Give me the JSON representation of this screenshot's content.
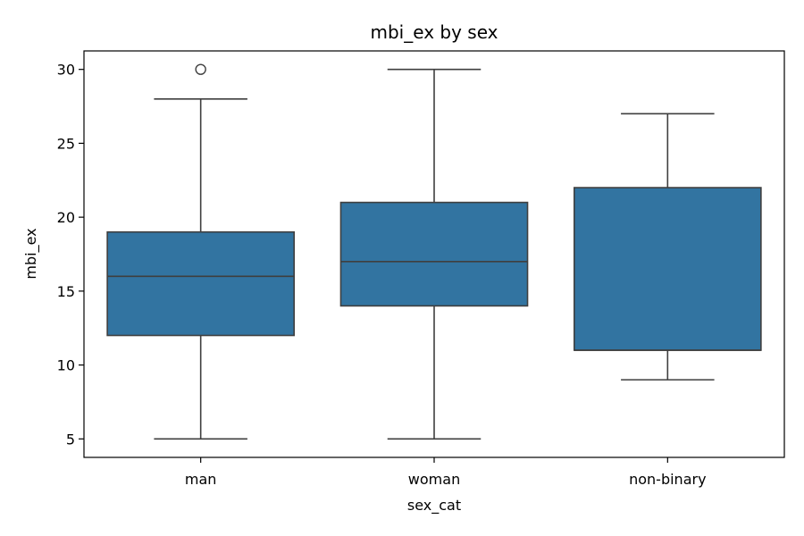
{
  "chart_data": {
    "type": "box",
    "title": "mbi_ex by sex",
    "xlabel": "sex_cat",
    "ylabel": "mbi_ex",
    "categories": [
      "man",
      "woman",
      "non-binary"
    ],
    "ylim": [
      3.75,
      31.25
    ],
    "yticks": [
      5,
      10,
      15,
      20,
      25,
      30
    ],
    "grid": false,
    "colors": {
      "box_fill": "#3274a1",
      "line": "#3f3f3f"
    },
    "boxes": [
      {
        "category": "man",
        "whisker_low": 5,
        "q1": 12,
        "median": 16,
        "q3": 19,
        "whisker_high": 28,
        "outliers": [
          30
        ]
      },
      {
        "category": "woman",
        "whisker_low": 5,
        "q1": 14,
        "median": 17,
        "q3": 21,
        "whisker_high": 30,
        "outliers": []
      },
      {
        "category": "non-binary",
        "whisker_low": 9,
        "q1": 11,
        "median": 11,
        "q3": 22,
        "whisker_high": 27,
        "outliers": []
      }
    ]
  }
}
